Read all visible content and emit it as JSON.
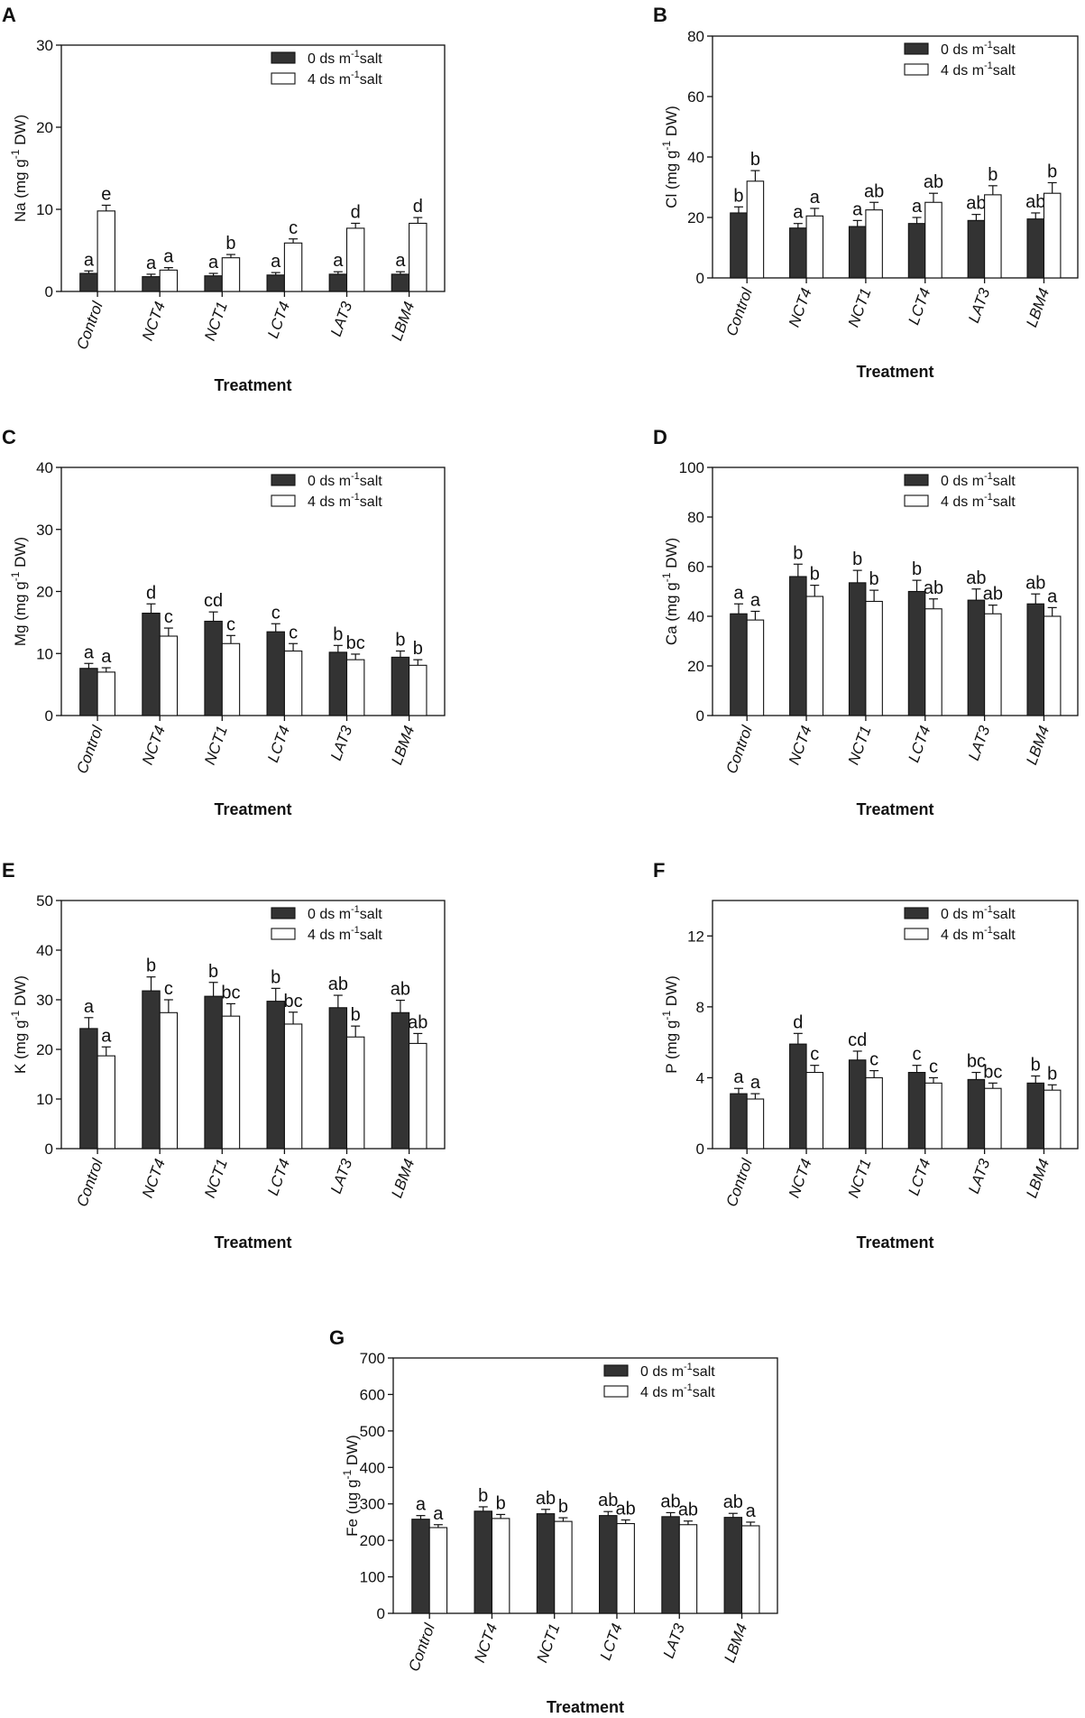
{
  "colors": {
    "salt0": "#333333",
    "salt4": "#ffffff",
    "axis": "#111111"
  },
  "legend": {
    "salt0_label": "0 ds m",
    "salt4_label": "4 ds m",
    "superscript": "-1",
    "suffix": "salt"
  },
  "xlabel": "Treatment",
  "chart_data": [
    {
      "panel": "A",
      "type": "bar",
      "element": "Na",
      "ylabel": "Na (mg g",
      "ylabel_sup": "-1",
      "ylabel_tail": " DW)",
      "categories": [
        "Control",
        "NCT4",
        "NCT1",
        "LCT4",
        "LAT3",
        "LBM4"
      ],
      "ylim": [
        0,
        30
      ],
      "yticks": [
        0,
        10,
        20,
        30
      ],
      "series": [
        {
          "name": "0 ds m-1 salt",
          "values": [
            2.2,
            1.8,
            1.9,
            2.0,
            2.1,
            2.1
          ],
          "errors": [
            0.3,
            0.3,
            0.3,
            0.3,
            0.3,
            0.3
          ],
          "letters": [
            "a",
            "a",
            "a",
            "a",
            "a",
            "a"
          ]
        },
        {
          "name": "4 ds m-1 salt",
          "values": [
            9.8,
            2.6,
            4.1,
            5.9,
            7.7,
            8.3
          ],
          "errors": [
            0.7,
            0.3,
            0.4,
            0.5,
            0.6,
            0.7
          ],
          "letters": [
            "e",
            "a",
            "b",
            "c",
            "d",
            "d"
          ]
        }
      ]
    },
    {
      "panel": "B",
      "type": "bar",
      "element": "Cl",
      "ylabel": "Cl (mg g",
      "ylabel_sup": "-1",
      "ylabel_tail": " DW)",
      "categories": [
        "Control",
        "NCT4",
        "NCT1",
        "LCT4",
        "LAT3",
        "LBM4"
      ],
      "ylim": [
        0,
        80
      ],
      "yticks": [
        0,
        20,
        40,
        60,
        80
      ],
      "series": [
        {
          "name": "0 ds m-1 salt",
          "values": [
            21.5,
            16.5,
            17.0,
            18.0,
            19.0,
            19.5
          ],
          "errors": [
            2.0,
            1.5,
            2.0,
            2.0,
            2.0,
            2.0
          ],
          "letters": [
            "b",
            "a",
            "a",
            "a",
            "ab",
            "ab"
          ]
        },
        {
          "name": "4 ds m-1 salt",
          "values": [
            32.0,
            20.5,
            22.5,
            25.0,
            27.5,
            28.0
          ],
          "errors": [
            3.5,
            2.5,
            2.5,
            3.0,
            3.0,
            3.5
          ],
          "letters": [
            "b",
            "a",
            "ab",
            "ab",
            "b",
            "b"
          ]
        }
      ]
    },
    {
      "panel": "C",
      "type": "bar",
      "element": "Mg",
      "ylabel": "Mg (mg g",
      "ylabel_sup": "-1",
      "ylabel_tail": " DW)",
      "categories": [
        "Control",
        "NCT4",
        "NCT1",
        "LCT4",
        "LAT3",
        "LBM4"
      ],
      "ylim": [
        0,
        40
      ],
      "yticks": [
        0,
        10,
        20,
        30,
        40
      ],
      "series": [
        {
          "name": "0 ds m-1 salt",
          "values": [
            7.6,
            16.5,
            15.2,
            13.5,
            10.2,
            9.4
          ],
          "errors": [
            0.8,
            1.5,
            1.5,
            1.3,
            1.1,
            1.0
          ],
          "letters": [
            "a",
            "d",
            "cd",
            "c",
            "b",
            "b"
          ]
        },
        {
          "name": "4 ds m-1 salt",
          "values": [
            7.0,
            12.8,
            11.6,
            10.4,
            9.0,
            8.1
          ],
          "errors": [
            0.7,
            1.3,
            1.3,
            1.2,
            0.9,
            0.9
          ],
          "letters": [
            "a",
            "c",
            "c",
            "c",
            "bc",
            "b"
          ]
        }
      ]
    },
    {
      "panel": "D",
      "type": "bar",
      "element": "Ca",
      "ylabel": "Ca (mg g",
      "ylabel_sup": "-1",
      "ylabel_tail": " DW)",
      "categories": [
        "Control",
        "NCT4",
        "NCT1",
        "LCT4",
        "LAT3",
        "LBM4"
      ],
      "ylim": [
        0,
        100
      ],
      "yticks": [
        0,
        20,
        40,
        60,
        80,
        100
      ],
      "series": [
        {
          "name": "0 ds m-1 salt",
          "values": [
            41,
            56,
            53.5,
            50,
            46.5,
            45
          ],
          "errors": [
            4,
            5,
            5,
            4.5,
            4.5,
            4
          ],
          "letters": [
            "a",
            "b",
            "b",
            "b",
            "ab",
            "ab"
          ]
        },
        {
          "name": "4 ds m-1 salt",
          "values": [
            38.5,
            48,
            46,
            43,
            41,
            40
          ],
          "errors": [
            3.5,
            4.5,
            4.5,
            4,
            3.5,
            3.5
          ],
          "letters": [
            "a",
            "b",
            "b",
            "ab",
            "ab",
            "a"
          ]
        }
      ]
    },
    {
      "panel": "E",
      "type": "bar",
      "element": "K",
      "ylabel": "K (mg g",
      "ylabel_sup": "-1",
      "ylabel_tail": " DW)",
      "categories": [
        "Control",
        "NCT4",
        "NCT1",
        "LCT4",
        "LAT3",
        "LBM4"
      ],
      "ylim": [
        0,
        50
      ],
      "yticks": [
        0,
        10,
        20,
        30,
        40,
        50
      ],
      "series": [
        {
          "name": "0 ds m-1 salt",
          "values": [
            24.2,
            31.8,
            30.7,
            29.7,
            28.4,
            27.4
          ],
          "errors": [
            2.2,
            2.8,
            2.8,
            2.6,
            2.5,
            2.5
          ],
          "letters": [
            "a",
            "b",
            "b",
            "b",
            "ab",
            "ab"
          ]
        },
        {
          "name": "4 ds m-1 salt",
          "values": [
            18.7,
            27.4,
            26.7,
            25.1,
            22.5,
            21.2
          ],
          "errors": [
            1.8,
            2.6,
            2.5,
            2.4,
            2.2,
            2.0
          ],
          "letters": [
            "a",
            "c",
            "bc",
            "bc",
            "b",
            "ab"
          ]
        }
      ]
    },
    {
      "panel": "F",
      "type": "bar",
      "element": "P",
      "ylabel": "P (mg g",
      "ylabel_sup": "-1",
      "ylabel_tail": " DW)",
      "categories": [
        "Control",
        "NCT4",
        "NCT1",
        "LCT4",
        "LAT3",
        "LBM4"
      ],
      "ylim": [
        0,
        14
      ],
      "yticks": [
        0,
        4,
        8,
        12
      ],
      "series": [
        {
          "name": "0 ds m-1 salt",
          "values": [
            3.1,
            5.9,
            5.0,
            4.3,
            3.9,
            3.7
          ],
          "errors": [
            0.3,
            0.6,
            0.5,
            0.4,
            0.4,
            0.4
          ],
          "letters": [
            "a",
            "d",
            "cd",
            "c",
            "bc",
            "b"
          ]
        },
        {
          "name": "4 ds m-1 salt",
          "values": [
            2.8,
            4.3,
            4.0,
            3.7,
            3.4,
            3.3
          ],
          "errors": [
            0.3,
            0.4,
            0.4,
            0.3,
            0.3,
            0.3
          ],
          "letters": [
            "a",
            "c",
            "c",
            "c",
            "bc",
            "b"
          ]
        }
      ]
    },
    {
      "panel": "G",
      "type": "bar",
      "element": "Fe",
      "ylabel": "Fe (ug g",
      "ylabel_sup": "-1",
      "ylabel_tail": " DW)",
      "categories": [
        "Control",
        "NCT4",
        "NCT1",
        "LCT4",
        "LAT3",
        "LBM4"
      ],
      "ylim": [
        0,
        700
      ],
      "yticks": [
        0,
        100,
        200,
        300,
        400,
        500,
        600,
        700
      ],
      "series": [
        {
          "name": "0 ds m-1 salt",
          "values": [
            258,
            280,
            273,
            268,
            265,
            263
          ],
          "errors": [
            10,
            12,
            12,
            11,
            11,
            11
          ],
          "letters": [
            "a",
            "b",
            "ab",
            "ab",
            "ab",
            "ab"
          ]
        },
        {
          "name": "4 ds m-1 salt",
          "values": [
            235,
            260,
            252,
            246,
            243,
            240
          ],
          "errors": [
            8,
            11,
            10,
            10,
            10,
            10
          ],
          "letters": [
            "a",
            "b",
            "b",
            "ab",
            "ab",
            "a"
          ]
        }
      ]
    }
  ]
}
